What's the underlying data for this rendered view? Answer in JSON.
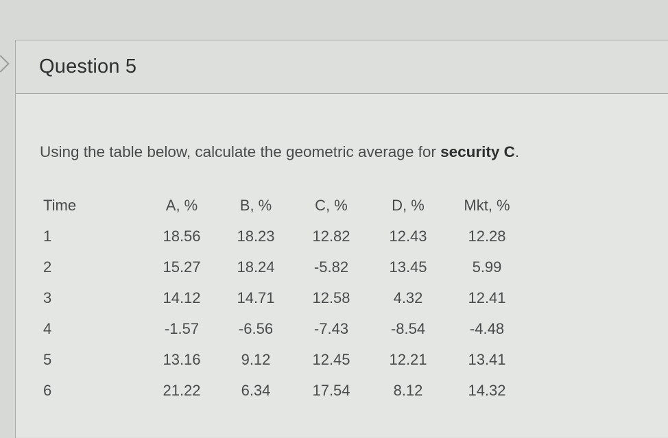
{
  "question": {
    "title": "Question 5",
    "prompt_prefix": "Using the table below, calculate the geometric average for ",
    "prompt_emphasis": "security C",
    "prompt_suffix": "."
  },
  "table": {
    "headers": [
      "Time",
      "A, %",
      "B, %",
      "C, %",
      "D, %",
      "Mkt, %"
    ],
    "rows": [
      [
        "1",
        "18.56",
        "18.23",
        "12.82",
        "12.43",
        "12.28"
      ],
      [
        "2",
        "15.27",
        "18.24",
        "-5.82",
        "13.45",
        "5.99"
      ],
      [
        "3",
        "14.12",
        "14.71",
        "12.58",
        "4.32",
        "12.41"
      ],
      [
        "4",
        "-1.57",
        "-6.56",
        "-7.43",
        "-8.54",
        "-4.48"
      ],
      [
        "5",
        "13.16",
        "9.12",
        "12.45",
        "12.21",
        "13.41"
      ],
      [
        "6",
        "21.22",
        "6.34",
        "17.54",
        "8.12",
        "14.32"
      ]
    ]
  },
  "icons": {
    "nav_arrow": "chevron-right-icon"
  }
}
